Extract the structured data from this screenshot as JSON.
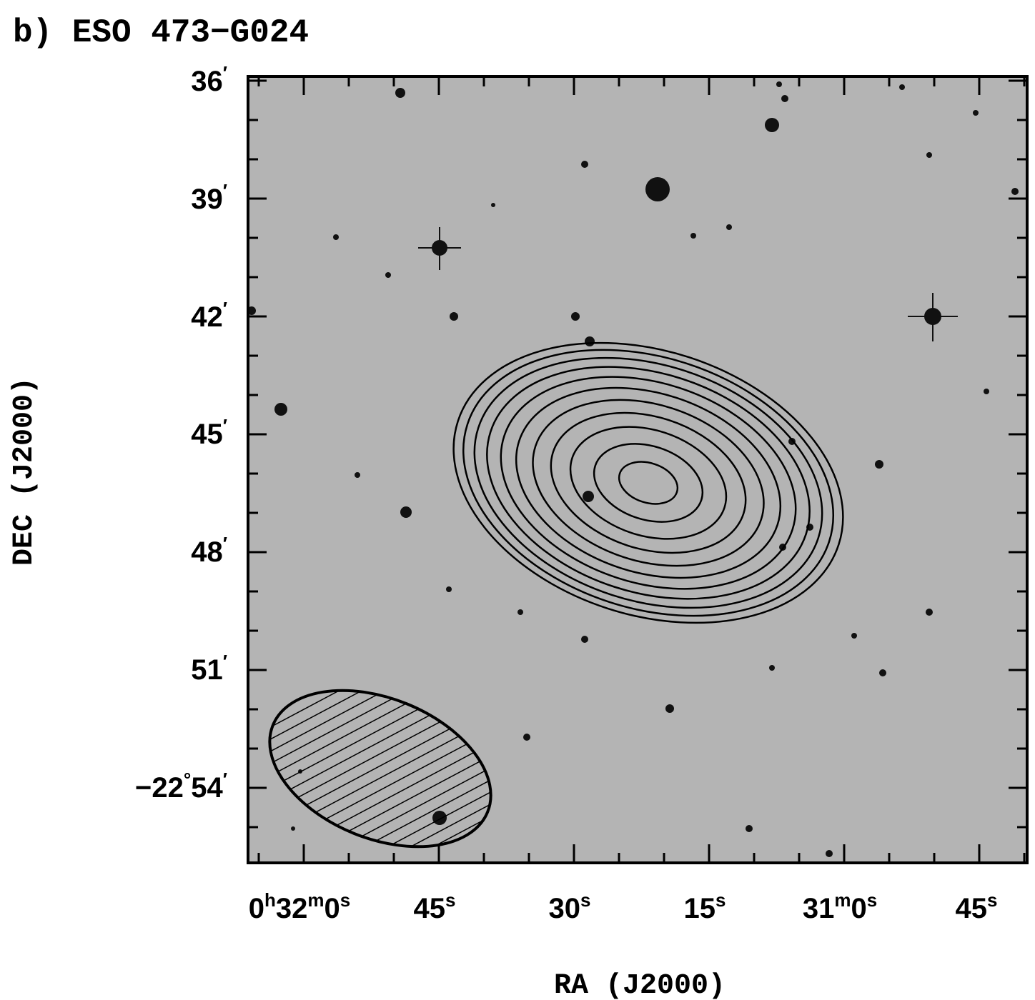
{
  "figure": {
    "title": "b) ESO 473−G024",
    "x_label": "RA (J2000)",
    "y_label": "DEC (J2000)",
    "x_ticks": [
      [
        "0",
        {
          "sup": "h"
        },
        "32",
        {
          "sup": "m"
        },
        "0",
        {
          "sup": "s"
        }
      ],
      [
        "45",
        {
          "sup": "s"
        }
      ],
      [
        "30",
        {
          "sup": "s"
        }
      ],
      [
        "15",
        {
          "sup": "s"
        }
      ],
      [
        "31",
        {
          "sup": "m"
        },
        "0",
        {
          "sup": "s"
        }
      ],
      [
        "45",
        {
          "sup": "s"
        }
      ]
    ],
    "y_ticks": [
      [
        "36",
        {
          "sup": "′"
        }
      ],
      [
        "39",
        {
          "sup": "′"
        }
      ],
      [
        "42",
        {
          "sup": "′"
        }
      ],
      [
        "45",
        {
          "sup": "′"
        }
      ],
      [
        "48",
        {
          "sup": "′"
        }
      ],
      [
        "51",
        {
          "sup": "′"
        }
      ],
      [
        "−22",
        {
          "sup": "°"
        },
        "54",
        {
          "sup": "′"
        }
      ]
    ]
  }
}
